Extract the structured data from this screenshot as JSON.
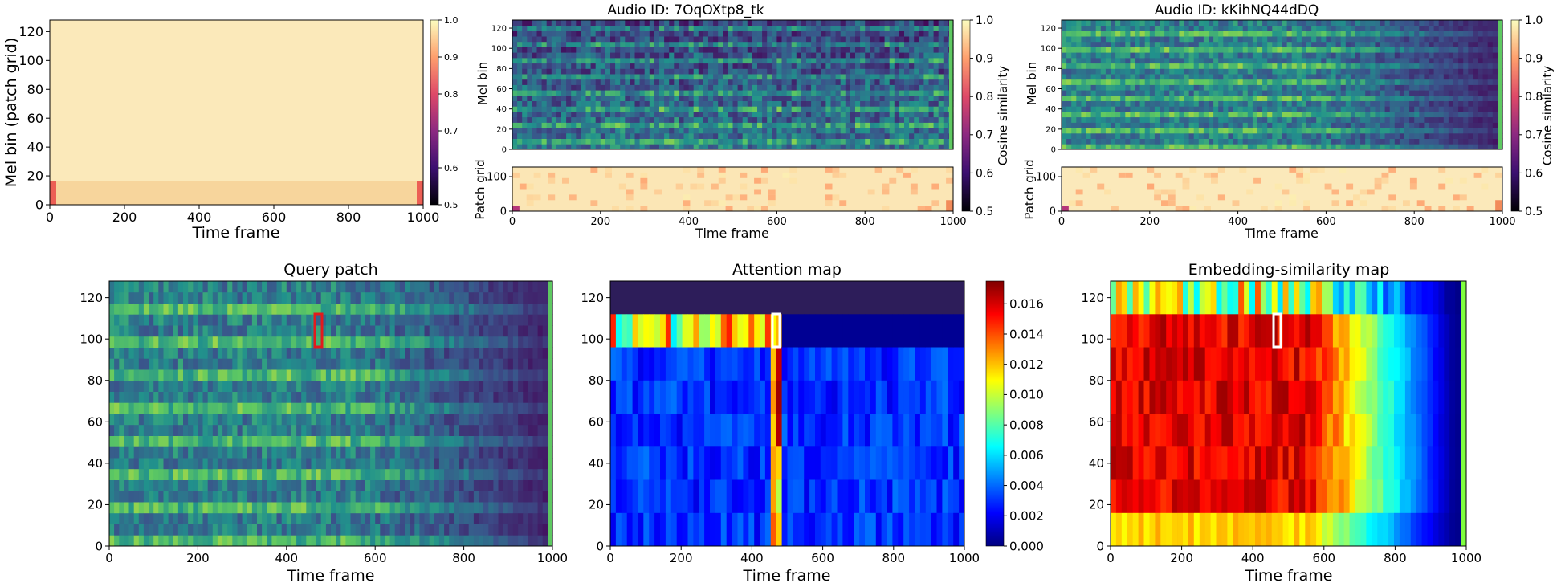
{
  "colors": {
    "magma": [
      "#000004",
      "#3b0f70",
      "#8c2981",
      "#de4968",
      "#fe9f6d",
      "#fcfdbf"
    ],
    "viridis": [
      "#440154",
      "#3b528b",
      "#21918c",
      "#5ec962",
      "#fde725"
    ],
    "jet": [
      "#00007f",
      "#0000ff",
      "#007fff",
      "#00ffff",
      "#7fff7f",
      "#ffff00",
      "#ff7f00",
      "#ff0000",
      "#7f0000"
    ],
    "query_marker": "#e31a1c",
    "patch_marker": "#ffffff"
  },
  "chart_data": [
    {
      "type": "heatmap",
      "panel": "top-left",
      "title": "",
      "xlabel": "Time frame",
      "ylabel": "Mel bin (patch grid)",
      "xlim": [
        0,
        1000
      ],
      "ylim": [
        0,
        128
      ],
      "xticks": [
        "0",
        "200",
        "400",
        "600",
        "800",
        "1000"
      ],
      "yticks": [
        "0",
        "20",
        "40",
        "60",
        "80",
        "100",
        "120"
      ],
      "colormap": "magma",
      "colorbar": {
        "label": "",
        "range": [
          0.5,
          1.0
        ],
        "ticks": [
          "0.5",
          "0.6",
          "0.7",
          "0.8",
          "0.9",
          "1.0"
        ]
      },
      "description_values": {
        "background_similarity": 0.99,
        "edge_low_bin_similarity": 0.86
      }
    },
    {
      "type": "heatmap",
      "panel": "top-middle",
      "title": "Audio ID: 7OqOXtp8_tk",
      "spectrogram": {
        "ylabel": "Mel bin",
        "xlim": [
          0,
          1000
        ],
        "ylim": [
          0,
          128
        ],
        "yticks": [
          "0",
          "20",
          "40",
          "60",
          "80",
          "100",
          "120"
        ],
        "colormap": "viridis"
      },
      "patch_grid": {
        "ylabel": "Patch grid",
        "xlabel": "Time frame",
        "xlim": [
          0,
          1000
        ],
        "ylim": [
          0,
          128
        ],
        "xticks": [
          "0",
          "200",
          "400",
          "600",
          "800",
          "1000"
        ],
        "yticks": [
          "0",
          "100"
        ],
        "colormap": "magma"
      },
      "colorbar": {
        "label": "Cosine similarity",
        "range": [
          0.5,
          1.0
        ],
        "ticks": [
          "0.5",
          "0.6",
          "0.7",
          "0.8",
          "0.9",
          "1.0"
        ]
      }
    },
    {
      "type": "heatmap",
      "panel": "top-right",
      "title": "Audio ID: kKihNQ44dDQ",
      "spectrogram": {
        "ylabel": "Mel bin",
        "xlim": [
          0,
          1000
        ],
        "ylim": [
          0,
          128
        ],
        "yticks": [
          "0",
          "20",
          "40",
          "60",
          "80",
          "100",
          "120"
        ],
        "colormap": "viridis"
      },
      "patch_grid": {
        "ylabel": "Patch grid",
        "xlabel": "Time frame",
        "xlim": [
          0,
          1000
        ],
        "ylim": [
          0,
          128
        ],
        "xticks": [
          "0",
          "200",
          "400",
          "600",
          "800",
          "1000"
        ],
        "yticks": [
          "0",
          "100"
        ],
        "colormap": "magma"
      },
      "colorbar": {
        "label": "Cosine similarity",
        "range": [
          0.5,
          1.0
        ],
        "ticks": [
          "0.5",
          "0.6",
          "0.7",
          "0.8",
          "0.9",
          "1.0"
        ]
      }
    },
    {
      "type": "heatmap",
      "panel": "bottom-left",
      "title": "Query patch",
      "xlabel": "Time frame",
      "ylabel": "",
      "xlim": [
        0,
        1000
      ],
      "ylim": [
        0,
        128
      ],
      "xticks": [
        "0",
        "200",
        "400",
        "600",
        "800",
        "1000"
      ],
      "yticks": [
        "0",
        "20",
        "40",
        "60",
        "80",
        "100",
        "120"
      ],
      "colormap": "viridis",
      "query_patch": {
        "x": [
          464,
          480
        ],
        "y": [
          96,
          112
        ]
      }
    },
    {
      "type": "heatmap",
      "panel": "bottom-middle",
      "title": "Attention map",
      "xlabel": "Time frame",
      "ylabel": "",
      "xlim": [
        0,
        1000
      ],
      "ylim": [
        0,
        128
      ],
      "xticks": [
        "0",
        "200",
        "400",
        "600",
        "800",
        "1000"
      ],
      "yticks": [
        "0",
        "20",
        "40",
        "60",
        "80",
        "100",
        "120"
      ],
      "colormap": "jet",
      "colorbar": {
        "label": "",
        "range": [
          0,
          0.0175
        ],
        "ticks": [
          "0.000",
          "0.002",
          "0.004",
          "0.006",
          "0.008",
          "0.010",
          "0.012",
          "0.014",
          "0.016"
        ]
      },
      "query_patch": {
        "x": [
          464,
          480
        ],
        "y": [
          96,
          112
        ]
      }
    },
    {
      "type": "heatmap",
      "panel": "bottom-right",
      "title": "Embedding-similarity map",
      "xlabel": "Time frame",
      "ylabel": "",
      "xlim": [
        0,
        1000
      ],
      "ylim": [
        0,
        128
      ],
      "xticks": [
        "0",
        "200",
        "400",
        "600",
        "800",
        "1000"
      ],
      "yticks": [
        "0",
        "20",
        "40",
        "60",
        "80",
        "100",
        "120"
      ],
      "colormap": "jet",
      "query_patch": {
        "x": [
          464,
          480
        ],
        "y": [
          96,
          112
        ]
      }
    }
  ]
}
